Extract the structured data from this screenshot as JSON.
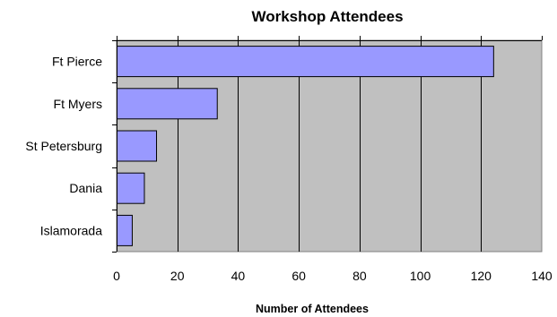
{
  "chart_data": {
    "type": "bar",
    "orientation": "horizontal",
    "title": "Workshop Attendees",
    "xlabel": "Number of Attendees",
    "ylabel": "",
    "categories": [
      "Ft Pierce",
      "Ft Myers",
      "St Petersburg",
      "Dania",
      "Islamorada"
    ],
    "values": [
      124,
      33,
      13,
      9,
      5
    ],
    "xlim": [
      0,
      140
    ],
    "xticks": [
      "0",
      "20",
      "40",
      "60",
      "80",
      "100",
      "120",
      "140"
    ],
    "grid": "vertical",
    "legend": "none",
    "colors": {
      "bar": "#9999ff",
      "bar_border": "#000000",
      "plot_bg": "#c0c0c0",
      "grid": "#000000"
    }
  }
}
